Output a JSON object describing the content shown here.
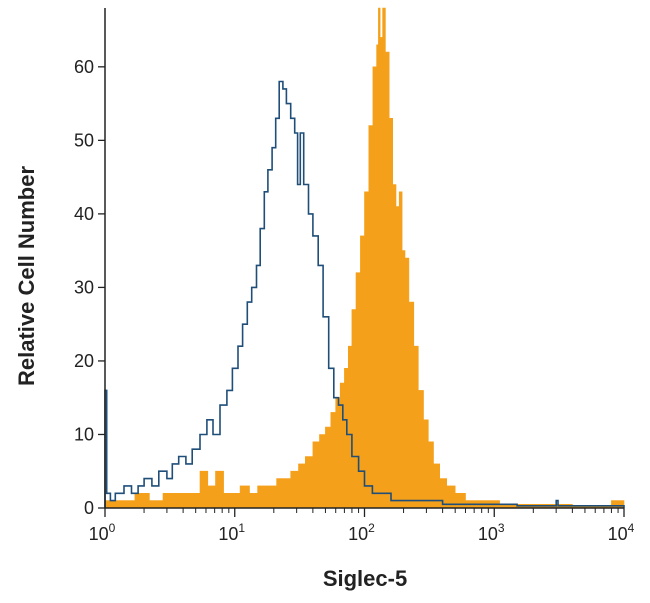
{
  "chart_data": {
    "type": "area",
    "xlabel": "Siglec-5",
    "ylabel": "Relative Cell Number",
    "xscale": "log",
    "xlim": [
      1,
      10000
    ],
    "ylim": [
      0,
      68
    ],
    "x_ticks": [
      {
        "base": "10",
        "exp": "0"
      },
      {
        "base": "10",
        "exp": "1"
      },
      {
        "base": "10",
        "exp": "2"
      },
      {
        "base": "10",
        "exp": "3"
      },
      {
        "base": "10",
        "exp": "4"
      }
    ],
    "y_ticks": [
      "0",
      "10",
      "20",
      "30",
      "40",
      "50",
      "60"
    ],
    "grid": false,
    "legend": "none",
    "series": [
      {
        "style": "outline",
        "color": "#1f4e79",
        "points": [
          [
            1.0,
            16
          ],
          [
            1.03,
            2
          ],
          [
            1.1,
            1
          ],
          [
            1.2,
            2
          ],
          [
            1.3,
            2
          ],
          [
            1.4,
            3
          ],
          [
            1.6,
            2
          ],
          [
            1.8,
            3
          ],
          [
            2.0,
            4
          ],
          [
            2.3,
            3
          ],
          [
            2.6,
            5
          ],
          [
            3.0,
            4
          ],
          [
            3.3,
            6
          ],
          [
            3.7,
            7
          ],
          [
            4.2,
            6
          ],
          [
            4.7,
            8
          ],
          [
            5.4,
            10
          ],
          [
            6.1,
            12
          ],
          [
            6.8,
            10
          ],
          [
            7.7,
            14
          ],
          [
            8.7,
            16
          ],
          [
            9.6,
            19
          ],
          [
            10.6,
            22
          ],
          [
            11.5,
            25
          ],
          [
            12.5,
            28
          ],
          [
            13.5,
            30
          ],
          [
            14.7,
            33
          ],
          [
            15.7,
            38
          ],
          [
            16.9,
            43
          ],
          [
            18.0,
            46
          ],
          [
            19.4,
            49
          ],
          [
            20.7,
            53
          ],
          [
            22.0,
            58
          ],
          [
            23.5,
            57
          ],
          [
            25.0,
            55
          ],
          [
            27.0,
            53
          ],
          [
            29.0,
            51
          ],
          [
            30.5,
            44
          ],
          [
            32.0,
            51
          ],
          [
            34.0,
            44
          ],
          [
            37.0,
            40
          ],
          [
            40.0,
            37
          ],
          [
            44.0,
            33
          ],
          [
            48.0,
            26
          ],
          [
            53.0,
            19
          ],
          [
            58.0,
            15
          ],
          [
            63.0,
            14
          ],
          [
            68.0,
            12
          ],
          [
            73.0,
            10
          ],
          [
            80.0,
            7
          ],
          [
            90.0,
            5
          ],
          [
            100.0,
            3
          ],
          [
            115.0,
            2
          ],
          [
            135.0,
            2
          ],
          [
            160.0,
            1
          ],
          [
            200.0,
            1
          ],
          [
            260.0,
            1
          ],
          [
            400.0,
            0.5
          ],
          [
            700.0,
            0.5
          ],
          [
            1500.0,
            0.3
          ],
          [
            2900.0,
            0.3
          ],
          [
            3000.0,
            1
          ],
          [
            3100.0,
            0.3
          ],
          [
            10000.0,
            0
          ]
        ]
      },
      {
        "style": "filled",
        "color": "#f5a01a",
        "points": [
          [
            1.0,
            1
          ],
          [
            1.3,
            1
          ],
          [
            1.7,
            2
          ],
          [
            2.2,
            1
          ],
          [
            2.8,
            2
          ],
          [
            3.6,
            2
          ],
          [
            4.7,
            2
          ],
          [
            5.4,
            5
          ],
          [
            6.2,
            3
          ],
          [
            7.1,
            5
          ],
          [
            8.2,
            2
          ],
          [
            9.5,
            2
          ],
          [
            11.0,
            3
          ],
          [
            13.0,
            2
          ],
          [
            15.0,
            3
          ],
          [
            18.0,
            3
          ],
          [
            21.0,
            4
          ],
          [
            24.0,
            4
          ],
          [
            27.0,
            5
          ],
          [
            31.0,
            6
          ],
          [
            35.0,
            7
          ],
          [
            40.0,
            9
          ],
          [
            45.0,
            10
          ],
          [
            50.0,
            11
          ],
          [
            55.0,
            13
          ],
          [
            60.0,
            15
          ],
          [
            65.0,
            17
          ],
          [
            70.0,
            19
          ],
          [
            75.0,
            22
          ],
          [
            80.0,
            27
          ],
          [
            86.0,
            32
          ],
          [
            93.0,
            37
          ],
          [
            100.0,
            43
          ],
          [
            108.0,
            52
          ],
          [
            116.0,
            60
          ],
          [
            124.0,
            63
          ],
          [
            128.0,
            68
          ],
          [
            132.0,
            64
          ],
          [
            138.0,
            68
          ],
          [
            145.0,
            62
          ],
          [
            155.0,
            53
          ],
          [
            165.0,
            44
          ],
          [
            175.0,
            41
          ],
          [
            185.0,
            43
          ],
          [
            195.0,
            35
          ],
          [
            205.0,
            34
          ],
          [
            220.0,
            28
          ],
          [
            240.0,
            22
          ],
          [
            260.0,
            16
          ],
          [
            285.0,
            12
          ],
          [
            310.0,
            9
          ],
          [
            340.0,
            6
          ],
          [
            380.0,
            4
          ],
          [
            430.0,
            3
          ],
          [
            500.0,
            2
          ],
          [
            600.0,
            1
          ],
          [
            750.0,
            1
          ],
          [
            900.0,
            1
          ],
          [
            1100.0,
            0.5
          ],
          [
            2000.0,
            0.5
          ],
          [
            4000.0,
            0.3
          ],
          [
            8000.0,
            1
          ],
          [
            10000.0,
            0.3
          ]
        ]
      }
    ]
  }
}
